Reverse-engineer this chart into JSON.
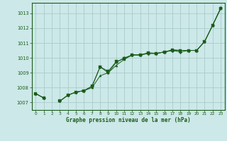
{
  "title": "Graphe pression niveau de la mer (hPa)",
  "bg_color": "#cce8e8",
  "plot_bg_color": "#cce8e8",
  "grid_color": "#aacccc",
  "line_color": "#1a5c1a",
  "text_color": "#1a5c1a",
  "xlim": [
    -0.5,
    23.5
  ],
  "ylim": [
    1006.5,
    1013.7
  ],
  "yticks": [
    1007,
    1008,
    1009,
    1010,
    1011,
    1012,
    1013
  ],
  "xticks": [
    0,
    1,
    2,
    3,
    4,
    5,
    6,
    7,
    8,
    9,
    10,
    11,
    12,
    13,
    14,
    15,
    16,
    17,
    18,
    19,
    20,
    21,
    22,
    23
  ],
  "series": [
    [
      1007.6,
      1007.3,
      null,
      1007.1,
      1007.5,
      1007.7,
      1007.8,
      1008.0,
      1008.8,
      1009.0,
      1009.5,
      1009.9,
      1010.2,
      1010.2,
      1010.3,
      1010.3,
      1010.4,
      1010.5,
      1010.5,
      1010.5,
      1010.5,
      1011.1,
      1012.2,
      1013.35
    ],
    [
      1007.6,
      1007.3,
      null,
      1007.1,
      1007.5,
      1007.7,
      1007.8,
      1008.1,
      1009.4,
      1009.0,
      1009.7,
      1010.0,
      1010.2,
      1010.2,
      1010.3,
      1010.3,
      1010.4,
      1010.5,
      1010.4,
      1010.5,
      1010.5,
      1011.1,
      1012.2,
      1013.35
    ],
    [
      1007.6,
      1007.3,
      null,
      1007.1,
      1007.5,
      1007.7,
      1007.8,
      1008.1,
      1009.4,
      1009.1,
      1009.75,
      1009.95,
      1010.2,
      1010.2,
      1010.35,
      1010.3,
      1010.4,
      1010.55,
      1010.5,
      1010.5,
      1010.5,
      1011.1,
      1012.2,
      1013.3
    ]
  ]
}
